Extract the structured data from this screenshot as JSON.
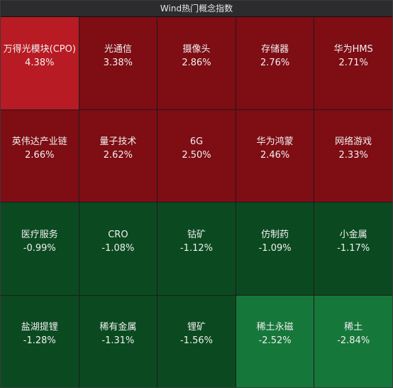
{
  "chart_data": {
    "type": "heatmap",
    "title": "Wind热门概念指数",
    "categories": [
      "万得光模块(CPO)",
      "光通信",
      "摄像头",
      "存储器",
      "华为HMS",
      "英伟达产业链",
      "量子技术",
      "6G",
      "华为鸿蒙",
      "网络游戏",
      "医疗服务",
      "CRO",
      "钴矿",
      "仿制药",
      "小金属",
      "盐湖提锂",
      "稀有金属",
      "锂矿",
      "稀土永磁",
      "稀土"
    ],
    "values": [
      4.38,
      3.38,
      2.86,
      2.76,
      2.71,
      2.66,
      2.62,
      2.5,
      2.46,
      2.33,
      -0.99,
      -1.08,
      -1.12,
      -1.09,
      -1.17,
      -1.28,
      -1.31,
      -1.56,
      -2.52,
      -2.84
    ],
    "value_labels": [
      "4.38%",
      "3.38%",
      "2.86%",
      "2.76%",
      "2.71%",
      "2.66%",
      "2.62%",
      "2.50%",
      "2.46%",
      "2.33%",
      "-0.99%",
      "-1.08%",
      "-1.12%",
      "-1.09%",
      "-1.17%",
      "-1.28%",
      "-1.31%",
      "-1.56%",
      "-2.52%",
      "-2.84%"
    ],
    "colors": [
      "#b81b23",
      "#7e0d14",
      "#7e0d14",
      "#7e0d14",
      "#7e0d14",
      "#7e0d14",
      "#7e0d14",
      "#7e0d14",
      "#7e0d14",
      "#7e0d14",
      "#0b4a20",
      "#0b4a20",
      "#0b4a20",
      "#0b4a20",
      "#0b4a20",
      "#0b4a20",
      "#0b4a20",
      "#0b4a20",
      "#16773a",
      "#16773a"
    ]
  }
}
